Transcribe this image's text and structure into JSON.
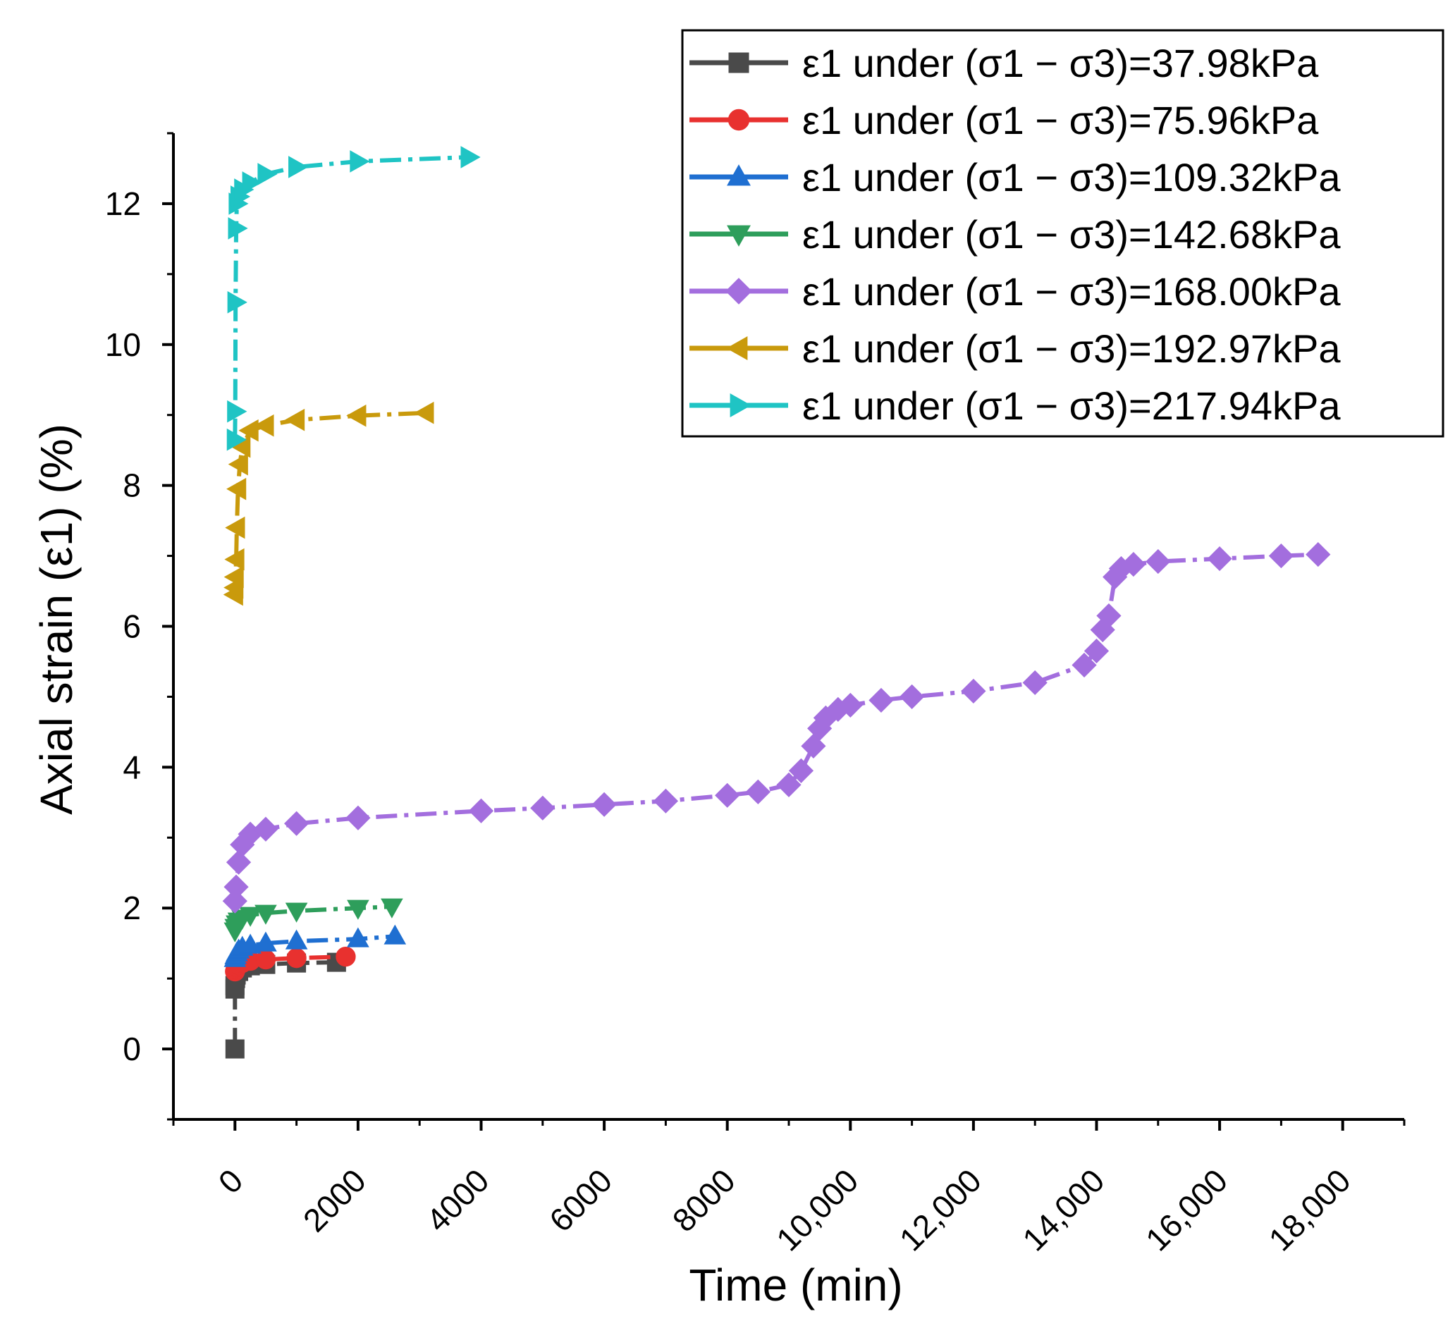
{
  "chart_data": {
    "type": "line",
    "title": "",
    "xlabel": "Time (min)",
    "ylabel": "Axial strain (ε1) (%)",
    "xlim": [
      -1000,
      19000
    ],
    "ylim": [
      -1,
      13
    ],
    "xticks": [
      0,
      2000,
      4000,
      6000,
      8000,
      10000,
      12000,
      14000,
      16000,
      18000
    ],
    "xtick_labels": [
      "0",
      "2000",
      "4000",
      "6000",
      "8000",
      "10,000",
      "12,000",
      "14,000",
      "16,000",
      "18,000"
    ],
    "yticks": [
      0,
      2,
      4,
      6,
      8,
      10,
      12
    ],
    "ytick_labels": [
      "0",
      "2",
      "4",
      "6",
      "8",
      "10",
      "12"
    ],
    "legend_position": "top-right",
    "series": [
      {
        "name": "ε1 under (σ1 − σ3)=37.98kPa",
        "color": "#4a4a4a",
        "marker": "square",
        "x": [
          0,
          0,
          0,
          10,
          20,
          60,
          120,
          250,
          500,
          1000,
          1650
        ],
        "y": [
          0,
          0.85,
          0.9,
          1.0,
          1.05,
          1.1,
          1.15,
          1.18,
          1.2,
          1.22,
          1.23
        ]
      },
      {
        "name": "ε1 under (σ1 − σ3)=75.96kPa",
        "color": "#e8312f",
        "marker": "circle",
        "x": [
          0,
          10,
          30,
          60,
          120,
          250,
          500,
          1000,
          1800
        ],
        "y": [
          1.1,
          1.13,
          1.16,
          1.19,
          1.22,
          1.25,
          1.27,
          1.29,
          1.31
        ]
      },
      {
        "name": "ε1 under (σ1 − σ3)=109.32kPa",
        "color": "#1f6fd1",
        "marker": "triangle-up",
        "x": [
          0,
          10,
          30,
          60,
          120,
          250,
          500,
          1000,
          2000,
          2600
        ],
        "y": [
          1.28,
          1.32,
          1.36,
          1.4,
          1.44,
          1.47,
          1.5,
          1.53,
          1.56,
          1.6
        ]
      },
      {
        "name": "ε1 under (σ1 − σ3)=142.68kPa",
        "color": "#2e9e5b",
        "marker": "triangle-down",
        "x": [
          0,
          10,
          30,
          60,
          120,
          250,
          500,
          1000,
          2000,
          2550
        ],
        "y": [
          1.68,
          1.73,
          1.78,
          1.82,
          1.86,
          1.9,
          1.93,
          1.96,
          2.0,
          2.02
        ]
      },
      {
        "name": "ε1 under (σ1 − σ3)=168.00kPa",
        "color": "#a36ede",
        "marker": "diamond",
        "x": [
          0,
          20,
          60,
          120,
          250,
          500,
          1000,
          2000,
          4000,
          5000,
          6000,
          7000,
          8000,
          8500,
          9000,
          9200,
          9400,
          9500,
          9600,
          9800,
          10000,
          10500,
          11000,
          12000,
          13000,
          13800,
          14000,
          14100,
          14200,
          14300,
          14400,
          14600,
          15000,
          16000,
          17000,
          17600
        ],
        "y": [
          2.1,
          2.3,
          2.65,
          2.9,
          3.05,
          3.12,
          3.2,
          3.28,
          3.38,
          3.42,
          3.47,
          3.52,
          3.6,
          3.65,
          3.75,
          3.95,
          4.3,
          4.55,
          4.7,
          4.82,
          4.88,
          4.95,
          5.0,
          5.08,
          5.2,
          5.45,
          5.65,
          5.95,
          6.15,
          6.7,
          6.82,
          6.88,
          6.92,
          6.96,
          7.0,
          7.02
        ]
      },
      {
        "name": "ε1 under (σ1 − σ3)=192.97kPa",
        "color": "#c99a0c",
        "marker": "triangle-left",
        "x": [
          0,
          5,
          10,
          20,
          30,
          50,
          80,
          120,
          250,
          500,
          1000,
          2000,
          3100
        ],
        "y": [
          6.45,
          6.55,
          6.7,
          6.95,
          7.4,
          7.95,
          8.3,
          8.55,
          8.78,
          8.85,
          8.93,
          8.99,
          9.03
        ]
      },
      {
        "name": "ε1 under (σ1 − σ3)=217.94kPa",
        "color": "#1fc4c4",
        "marker": "triangle-right",
        "x": [
          0,
          5,
          10,
          20,
          30,
          60,
          120,
          250,
          500,
          1000,
          2000,
          3800
        ],
        "y": [
          8.65,
          9.05,
          10.6,
          11.65,
          12.0,
          12.1,
          12.2,
          12.3,
          12.42,
          12.52,
          12.6,
          12.66
        ]
      }
    ]
  }
}
